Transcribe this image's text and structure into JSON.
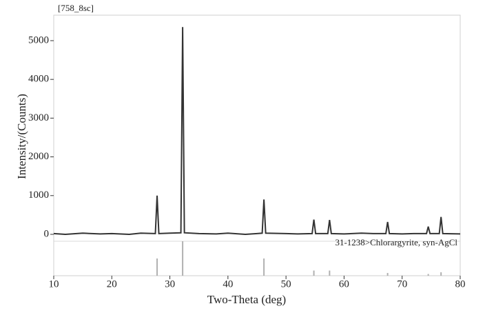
{
  "chart_data": {
    "type": "line",
    "title": "[758_8sc]",
    "x_label": "Two-Theta (deg)",
    "y_label": "Intensity/(Counts)",
    "xlim": [
      10,
      80
    ],
    "xticks": [
      10,
      20,
      30,
      40,
      50,
      60,
      70,
      80
    ],
    "ylim": [
      -1068,
      5658
    ],
    "yticks": [
      0,
      1000,
      2000,
      3000,
      4000,
      5000
    ],
    "series": [
      {
        "color": "#333333",
        "x": [
          10,
          12,
          15,
          18,
          20,
          23,
          25,
          27.5,
          27.8,
          28.1,
          30,
          31.9,
          32.2,
          32.5,
          35,
          38,
          40,
          43,
          45,
          45.9,
          46.2,
          46.5,
          50,
          52,
          54.5,
          54.8,
          55.1,
          57.2,
          57.5,
          57.8,
          60,
          63,
          65,
          67.2,
          67.5,
          67.8,
          70,
          72,
          74.2,
          74.5,
          74.8,
          76.4,
          76.7,
          77,
          80
        ],
        "values": [
          20,
          0,
          30,
          10,
          20,
          0,
          30,
          20,
          1000,
          20,
          30,
          40,
          5350,
          40,
          20,
          10,
          30,
          0,
          20,
          30,
          900,
          30,
          20,
          10,
          20,
          380,
          20,
          20,
          370,
          20,
          10,
          30,
          20,
          20,
          320,
          20,
          10,
          20,
          20,
          200,
          20,
          20,
          450,
          20,
          10
        ]
      }
    ],
    "reference": {
      "name": "31-1238>Chlorargyrite, syn-AgCl",
      "color": "#b0b0b0",
      "x": [
        27.8,
        32.2,
        46.2,
        54.8,
        57.5,
        67.5,
        74.5,
        76.7
      ],
      "values": [
        50,
        100,
        50,
        15,
        15,
        8,
        5,
        10
      ]
    }
  }
}
